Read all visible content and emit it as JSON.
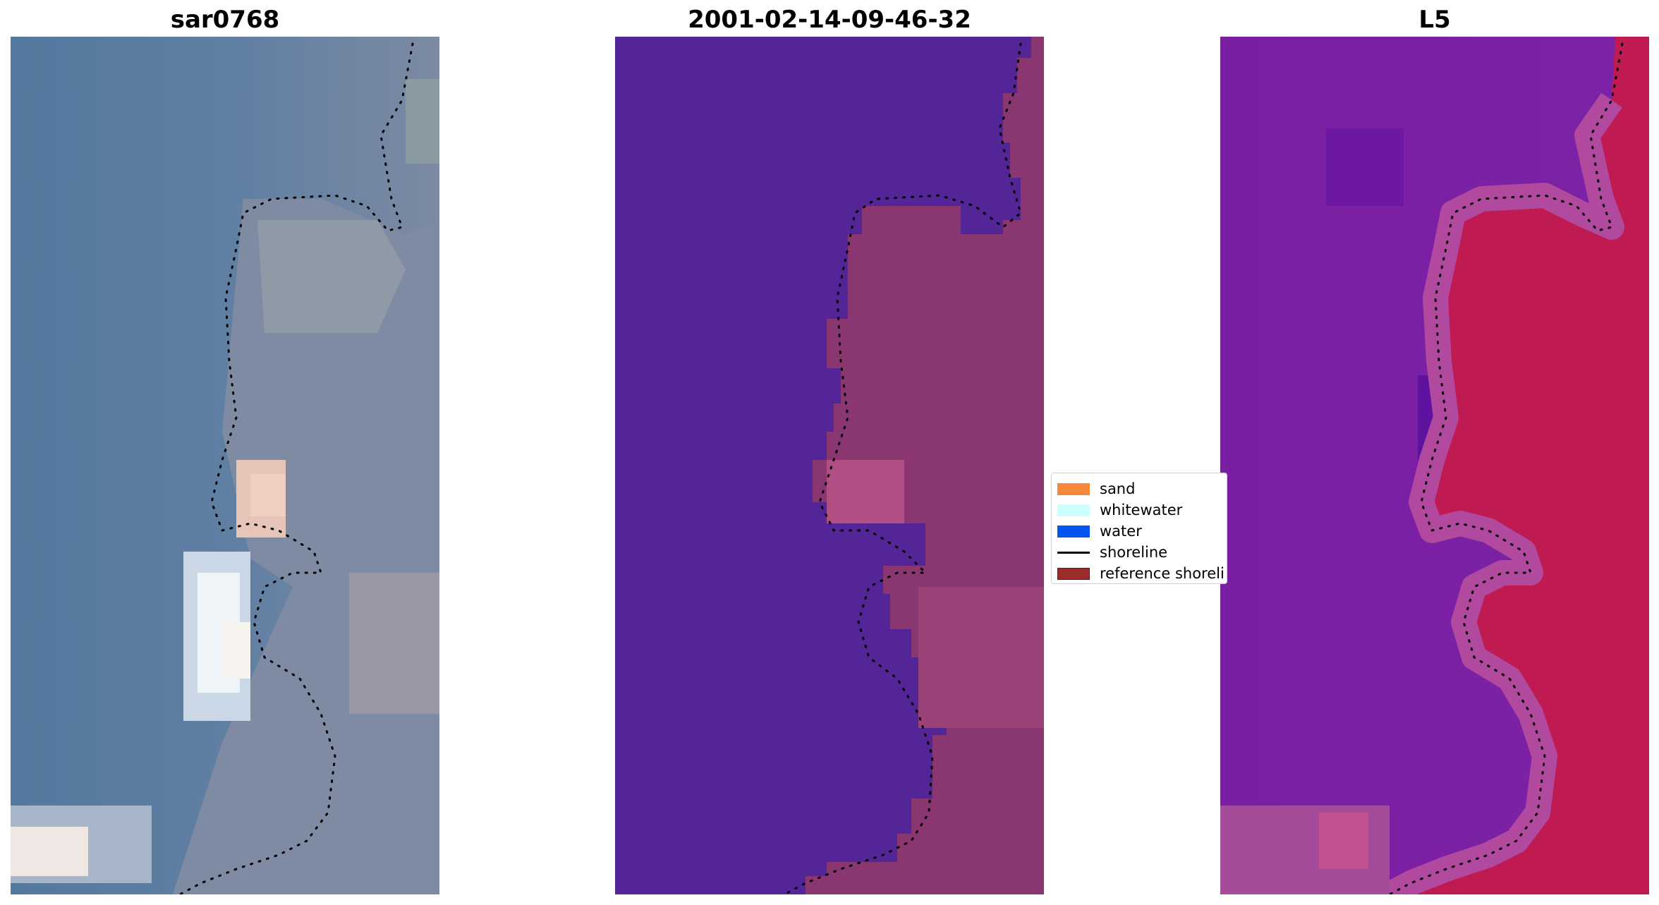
{
  "panels": [
    {
      "title": "sar0768"
    },
    {
      "title": "2001-02-14-09-46-32"
    },
    {
      "title": "L5"
    }
  ],
  "legend": {
    "items": [
      {
        "label": "sand",
        "color": "#f6883a",
        "kind": "patch"
      },
      {
        "label": "whitewater",
        "color": "#ccffff",
        "kind": "patch"
      },
      {
        "label": "water",
        "color": "#0055ee",
        "kind": "patch"
      },
      {
        "label": "shoreline",
        "color": "#000000",
        "kind": "line"
      },
      {
        "label": "reference shoreli",
        "color": "#9b2d2d",
        "kind": "patch"
      }
    ]
  },
  "colors": {
    "rgb_water": "#5a7fa4",
    "rgb_land": "#8b93a8",
    "class_water": "#532596",
    "class_land": "#8a3670",
    "index_low": "#7a1fa2",
    "index_high": "#c8144a"
  }
}
